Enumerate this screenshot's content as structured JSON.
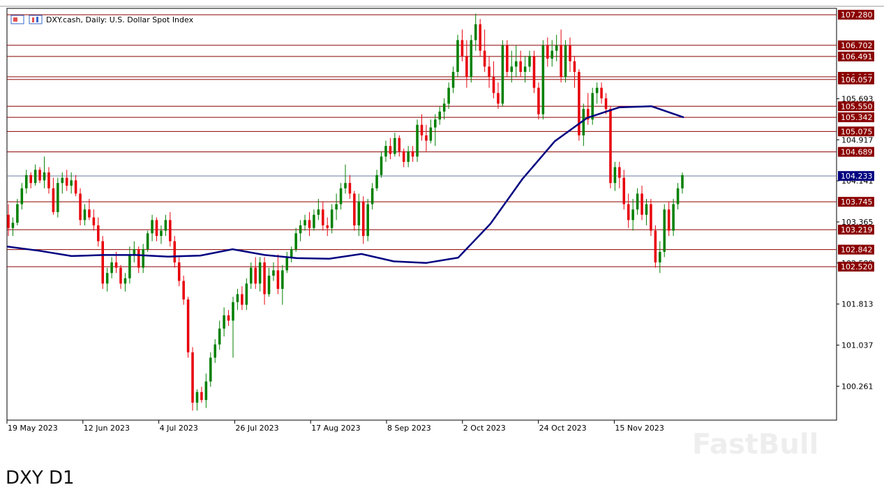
{
  "chart_title": "DXY.cash, Daily:  U.S. Dollar Spot Index",
  "caption": "DXY D1",
  "watermark": "FastBull",
  "colors": {
    "up": "#008000",
    "down": "#e8000b",
    "level_line": "#8b0000",
    "level_label_bg": "#8b0000",
    "current_price_line": "#6b7aa1",
    "current_price_bg": "#000080",
    "moving_average": "#000080",
    "grid_axis": "#000000"
  },
  "chart_data": {
    "type": "candlestick",
    "title": "DXY.cash, Daily:  U.S. Dollar Spot Index",
    "x_tick_labels": [
      "19 May 2023",
      "12 Jun 2023",
      "4 Jul 2023",
      "26 Jul 2023",
      "17 Aug 2023",
      "8 Sep 2023",
      "2 Oct 2023",
      "24 Oct 2023",
      "15 Nov 2023"
    ],
    "y_tick_labels": [
      "105.693",
      "104.917",
      "104.141",
      "103.365",
      "102.589",
      "101.813",
      "101.037",
      "100.261"
    ],
    "ylim": [
      99.62,
      107.4
    ],
    "horizontal_levels": [
      "107.280",
      "106.702",
      "106.491",
      "106.107",
      "106.057",
      "105.550",
      "105.342",
      "105.075",
      "104.689",
      "103.745",
      "103.219",
      "102.842",
      "102.520"
    ],
    "current_price": "104.233",
    "moving_average_approx": [
      102.9,
      102.82,
      102.72,
      102.74,
      102.74,
      102.71,
      102.73,
      102.85,
      102.74,
      102.68,
      102.67,
      102.76,
      102.62,
      102.59,
      102.69,
      103.33,
      104.18,
      104.89,
      105.33,
      105.53,
      105.55,
      105.34
    ],
    "candles": [
      [
        103.5,
        103.7,
        103.1,
        103.25
      ],
      [
        103.25,
        103.45,
        103.1,
        103.35
      ],
      [
        103.35,
        103.8,
        103.3,
        103.7
      ],
      [
        103.7,
        104.1,
        103.6,
        104.0
      ],
      [
        104.0,
        104.35,
        103.9,
        104.25
      ],
      [
        104.25,
        104.3,
        104.0,
        104.1
      ],
      [
        104.1,
        104.45,
        104.05,
        104.35
      ],
      [
        104.35,
        104.4,
        104.1,
        104.15
      ],
      [
        104.15,
        104.6,
        104.0,
        104.3
      ],
      [
        104.3,
        104.4,
        103.9,
        104.0
      ],
      [
        104.0,
        104.2,
        103.5,
        103.55
      ],
      [
        103.55,
        104.2,
        103.45,
        104.1
      ],
      [
        104.1,
        104.3,
        103.9,
        104.2
      ],
      [
        104.2,
        104.35,
        103.95,
        104.05
      ],
      [
        104.05,
        104.3,
        103.9,
        104.15
      ],
      [
        104.15,
        104.25,
        103.85,
        103.9
      ],
      [
        103.9,
        104.0,
        103.3,
        103.4
      ],
      [
        103.4,
        103.7,
        103.3,
        103.6
      ],
      [
        103.6,
        103.8,
        103.4,
        103.45
      ],
      [
        103.45,
        103.6,
        103.2,
        103.3
      ],
      [
        103.3,
        103.45,
        102.9,
        103.0
      ],
      [
        103.0,
        103.1,
        102.1,
        102.2
      ],
      [
        102.2,
        102.5,
        102.05,
        102.4
      ],
      [
        102.4,
        102.7,
        102.3,
        102.6
      ],
      [
        102.6,
        102.8,
        102.4,
        102.5
      ],
      [
        102.5,
        102.55,
        102.1,
        102.2
      ],
      [
        102.2,
        102.4,
        102.05,
        102.3
      ],
      [
        102.3,
        102.9,
        102.2,
        102.75
      ],
      [
        102.75,
        103.0,
        102.6,
        102.85
      ],
      [
        102.85,
        102.9,
        102.4,
        102.5
      ],
      [
        102.5,
        102.95,
        102.4,
        102.85
      ],
      [
        102.85,
        103.2,
        102.8,
        103.15
      ],
      [
        103.15,
        103.5,
        103.0,
        103.4
      ],
      [
        103.4,
        103.45,
        103.0,
        103.1
      ],
      [
        103.1,
        103.3,
        102.95,
        103.2
      ],
      [
        103.2,
        103.5,
        103.1,
        103.4
      ],
      [
        103.4,
        103.55,
        102.9,
        103.0
      ],
      [
        103.0,
        103.1,
        102.5,
        102.6
      ],
      [
        102.6,
        102.7,
        102.15,
        102.25
      ],
      [
        102.25,
        102.35,
        101.8,
        101.9
      ],
      [
        101.9,
        101.95,
        100.8,
        100.9
      ],
      [
        100.9,
        101.0,
        99.8,
        99.95
      ],
      [
        99.95,
        100.2,
        99.8,
        100.15
      ],
      [
        100.15,
        100.25,
        99.95,
        100.0
      ],
      [
        100.0,
        100.5,
        99.85,
        100.35
      ],
      [
        100.35,
        100.9,
        100.25,
        100.8
      ],
      [
        100.8,
        101.15,
        100.7,
        101.05
      ],
      [
        101.05,
        101.5,
        100.95,
        101.35
      ],
      [
        101.35,
        101.75,
        101.2,
        101.6
      ],
      [
        101.6,
        101.7,
        101.4,
        101.5
      ],
      [
        101.5,
        101.95,
        100.8,
        101.85
      ],
      [
        101.85,
        102.1,
        101.7,
        102.0
      ],
      [
        102.0,
        102.15,
        101.7,
        101.8
      ],
      [
        101.8,
        102.3,
        101.7,
        102.2
      ],
      [
        102.2,
        102.6,
        102.1,
        102.5
      ],
      [
        102.5,
        102.7,
        102.1,
        102.2
      ],
      [
        102.2,
        102.7,
        102.05,
        102.6
      ],
      [
        102.6,
        102.7,
        101.8,
        102.0
      ],
      [
        102.0,
        102.5,
        101.95,
        102.35
      ],
      [
        102.35,
        102.6,
        102.25,
        102.45
      ],
      [
        102.45,
        102.75,
        102.0,
        102.1
      ],
      [
        102.1,
        102.55,
        101.8,
        102.45
      ],
      [
        102.45,
        102.8,
        102.4,
        102.7
      ],
      [
        102.7,
        102.9,
        102.6,
        102.85
      ],
      [
        102.85,
        103.25,
        102.8,
        103.15
      ],
      [
        103.15,
        103.4,
        103.0,
        103.3
      ],
      [
        103.3,
        103.5,
        103.2,
        103.4
      ],
      [
        103.4,
        103.55,
        103.1,
        103.25
      ],
      [
        103.25,
        103.6,
        103.2,
        103.5
      ],
      [
        103.5,
        103.8,
        103.4,
        103.6
      ],
      [
        103.6,
        103.75,
        103.2,
        103.3
      ],
      [
        103.3,
        103.45,
        103.1,
        103.25
      ],
      [
        103.25,
        103.7,
        103.15,
        103.6
      ],
      [
        103.6,
        103.9,
        103.4,
        103.7
      ],
      [
        103.7,
        104.1,
        103.6,
        104.0
      ],
      [
        104.0,
        104.45,
        103.9,
        104.1
      ],
      [
        104.1,
        104.25,
        103.8,
        103.9
      ],
      [
        103.9,
        103.95,
        103.2,
        103.3
      ],
      [
        103.3,
        103.9,
        103.1,
        103.75
      ],
      [
        103.75,
        103.85,
        102.95,
        103.1
      ],
      [
        103.1,
        103.8,
        103.0,
        103.7
      ],
      [
        103.7,
        104.1,
        103.6,
        104.0
      ],
      [
        104.0,
        104.35,
        103.95,
        104.25
      ],
      [
        104.25,
        104.7,
        104.2,
        104.6
      ],
      [
        104.6,
        104.9,
        104.5,
        104.8
      ],
      [
        104.8,
        104.95,
        104.55,
        104.65
      ],
      [
        104.65,
        105.05,
        104.6,
        104.95
      ],
      [
        104.95,
        105.0,
        104.6,
        104.7
      ],
      [
        104.7,
        104.75,
        104.4,
        104.5
      ],
      [
        104.5,
        104.8,
        104.4,
        104.7
      ],
      [
        104.7,
        104.8,
        104.5,
        104.6
      ],
      [
        104.6,
        105.3,
        104.5,
        105.2
      ],
      [
        105.2,
        105.4,
        104.9,
        105.0
      ],
      [
        105.0,
        105.2,
        104.7,
        104.9
      ],
      [
        104.9,
        105.3,
        104.85,
        105.15
      ],
      [
        105.15,
        105.4,
        104.8,
        105.3
      ],
      [
        105.3,
        105.55,
        105.2,
        105.45
      ],
      [
        105.45,
        105.7,
        105.3,
        105.6
      ],
      [
        105.6,
        106.0,
        105.5,
        105.9
      ],
      [
        105.9,
        106.3,
        105.8,
        106.2
      ],
      [
        106.2,
        106.9,
        106.1,
        106.8
      ],
      [
        106.8,
        107.0,
        106.4,
        106.5
      ],
      [
        106.5,
        106.8,
        105.9,
        106.1
      ],
      [
        106.1,
        106.9,
        106.0,
        106.8
      ],
      [
        106.8,
        107.3,
        106.6,
        107.1
      ],
      [
        107.1,
        107.2,
        106.5,
        106.6
      ],
      [
        106.6,
        107.0,
        106.2,
        106.3
      ],
      [
        106.3,
        106.5,
        105.9,
        106.1
      ],
      [
        106.1,
        106.4,
        105.7,
        105.8
      ],
      [
        105.8,
        106.0,
        105.5,
        105.6
      ],
      [
        105.6,
        106.8,
        105.55,
        106.7
      ],
      [
        106.7,
        106.8,
        106.1,
        106.2
      ],
      [
        106.2,
        106.6,
        106.0,
        106.3
      ],
      [
        106.3,
        106.7,
        106.1,
        106.4
      ],
      [
        106.4,
        106.6,
        106.1,
        106.2
      ],
      [
        106.2,
        106.5,
        106.0,
        106.3
      ],
      [
        106.3,
        106.6,
        106.2,
        106.5
      ],
      [
        106.5,
        106.6,
        105.8,
        105.9
      ],
      [
        105.9,
        106.0,
        105.3,
        105.4
      ],
      [
        105.4,
        106.8,
        105.3,
        106.7
      ],
      [
        106.7,
        106.85,
        106.3,
        106.45
      ],
      [
        106.45,
        106.8,
        106.3,
        106.6
      ],
      [
        106.6,
        106.9,
        106.4,
        106.7
      ],
      [
        106.7,
        107.0,
        106.0,
        106.1
      ],
      [
        106.1,
        106.8,
        106.0,
        106.7
      ],
      [
        106.7,
        106.85,
        106.2,
        106.4
      ],
      [
        106.4,
        106.5,
        105.9,
        106.2
      ],
      [
        106.2,
        106.25,
        104.9,
        105.0
      ],
      [
        105.0,
        105.6,
        104.8,
        105.5
      ],
      [
        105.5,
        105.8,
        105.2,
        105.3
      ],
      [
        105.3,
        105.9,
        105.2,
        105.8
      ],
      [
        105.8,
        106.0,
        105.6,
        105.9
      ],
      [
        105.9,
        106.0,
        105.6,
        105.7
      ],
      [
        105.7,
        105.8,
        105.4,
        105.5
      ],
      [
        105.5,
        105.55,
        104.0,
        104.1
      ],
      [
        104.1,
        104.5,
        103.95,
        104.4
      ],
      [
        104.4,
        104.5,
        104.0,
        104.2
      ],
      [
        104.2,
        104.35,
        103.6,
        103.7
      ],
      [
        103.7,
        103.9,
        103.25,
        103.4
      ],
      [
        103.4,
        103.8,
        103.2,
        103.6
      ],
      [
        103.6,
        104.0,
        103.5,
        103.9
      ],
      [
        103.9,
        104.05,
        103.4,
        103.5
      ],
      [
        103.5,
        103.8,
        103.3,
        103.7
      ],
      [
        103.7,
        103.8,
        103.1,
        103.2
      ],
      [
        103.2,
        103.3,
        102.5,
        102.6
      ],
      [
        102.6,
        103.0,
        102.4,
        102.8
      ],
      [
        102.8,
        103.7,
        102.7,
        103.6
      ],
      [
        103.6,
        103.75,
        103.1,
        103.2
      ],
      [
        103.2,
        103.8,
        103.1,
        103.7
      ],
      [
        103.7,
        104.1,
        103.6,
        104.0
      ],
      [
        104.0,
        104.3,
        103.9,
        104.25
      ]
    ]
  }
}
